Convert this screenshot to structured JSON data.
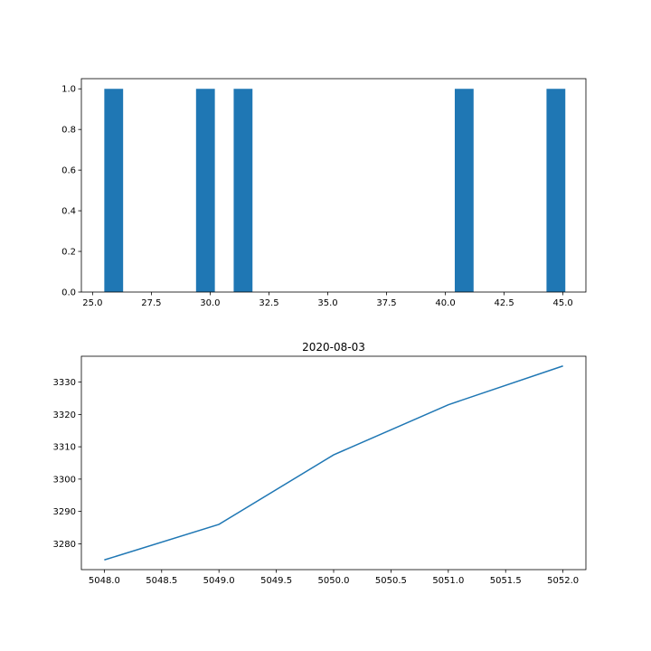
{
  "chart_data": [
    {
      "type": "bar",
      "title": "",
      "xlabel": "",
      "ylabel": "",
      "color": "#1f77b4",
      "xlim": [
        24.525,
        45.975
      ],
      "ylim": [
        0,
        1.05
      ],
      "xticks": [
        "25.0",
        "27.5",
        "30.0",
        "32.5",
        "35.0",
        "37.5",
        "40.0",
        "42.5",
        "45.0"
      ],
      "yticks": [
        "0.0",
        "0.2",
        "0.4",
        "0.6",
        "0.8",
        "1.0"
      ],
      "bars": [
        {
          "x0": 25.5,
          "x1": 26.3,
          "value": 1
        },
        {
          "x0": 29.4,
          "x1": 30.2,
          "value": 1
        },
        {
          "x0": 31.0,
          "x1": 31.8,
          "value": 1
        },
        {
          "x0": 40.4,
          "x1": 41.2,
          "value": 1
        },
        {
          "x0": 44.3,
          "x1": 45.1,
          "value": 1
        }
      ],
      "grid": false,
      "legend": "none"
    },
    {
      "type": "line",
      "title": "2020-08-03",
      "xlabel": "",
      "ylabel": "",
      "color": "#1f77b4",
      "xlim": [
        5047.8,
        5052.2
      ],
      "ylim": [
        3272,
        3338
      ],
      "xticks": [
        "5048.0",
        "5048.5",
        "5049.0",
        "5049.5",
        "5050.0",
        "5050.5",
        "5051.0",
        "5051.5",
        "5052.0"
      ],
      "yticks": [
        "3280",
        "3290",
        "3300",
        "3310",
        "3320",
        "3330"
      ],
      "x": [
        5048,
        5049,
        5050,
        5051,
        5052
      ],
      "y": [
        3275,
        3286,
        3307.5,
        3323,
        3335
      ],
      "grid": false,
      "legend": "none"
    }
  ]
}
